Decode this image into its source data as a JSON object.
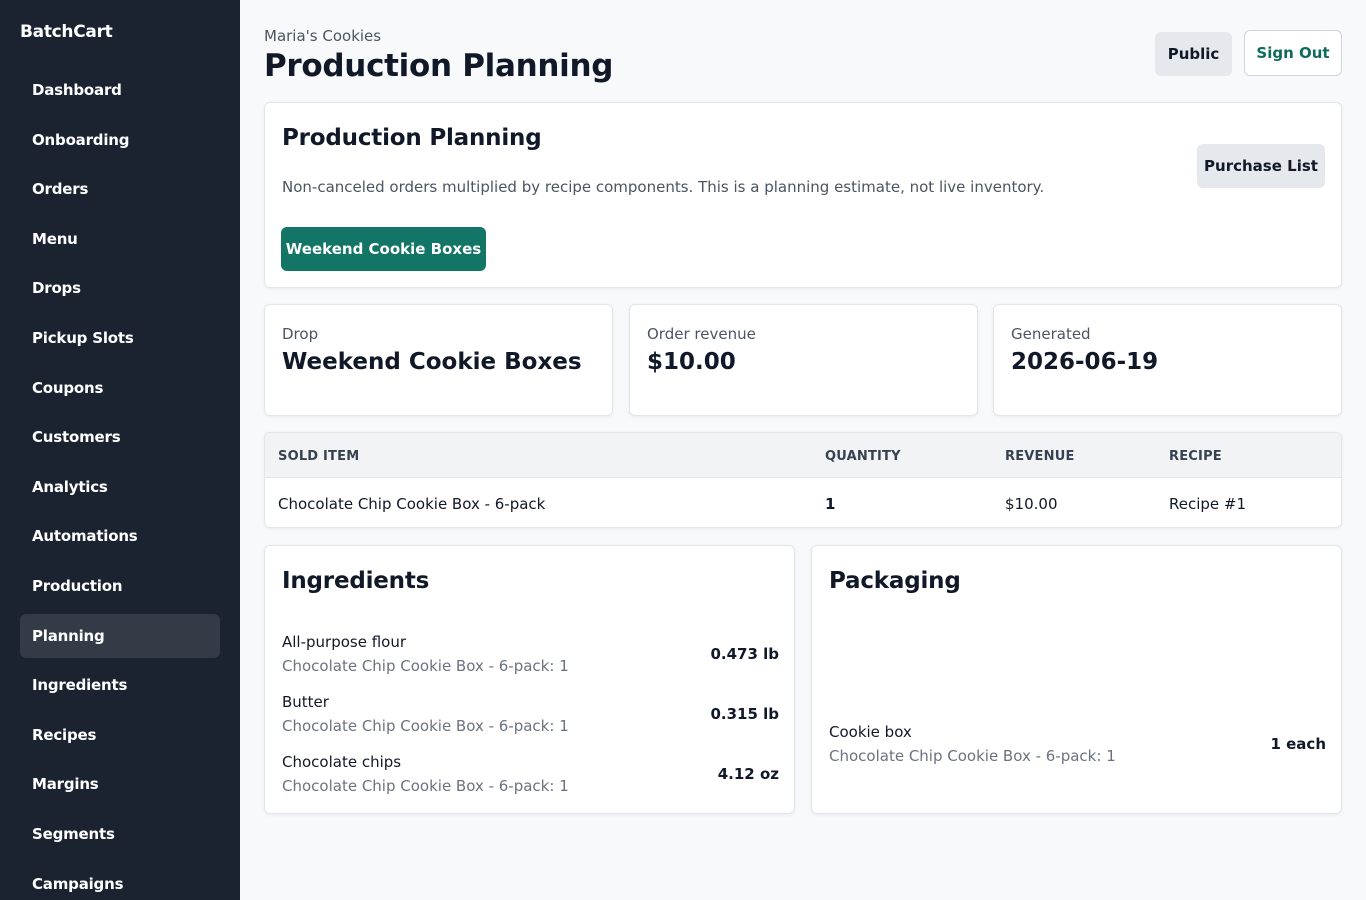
{
  "app": {
    "brand": "BatchCart"
  },
  "sidebar": {
    "items": [
      {
        "label": "Dashboard"
      },
      {
        "label": "Onboarding"
      },
      {
        "label": "Orders"
      },
      {
        "label": "Menu"
      },
      {
        "label": "Drops"
      },
      {
        "label": "Pickup Slots"
      },
      {
        "label": "Coupons"
      },
      {
        "label": "Customers"
      },
      {
        "label": "Analytics"
      },
      {
        "label": "Automations"
      },
      {
        "label": "Production"
      },
      {
        "label": "Planning"
      },
      {
        "label": "Ingredients"
      },
      {
        "label": "Recipes"
      },
      {
        "label": "Margins"
      },
      {
        "label": "Segments"
      },
      {
        "label": "Campaigns"
      }
    ],
    "active": "Planning"
  },
  "header": {
    "store_name": "Maria's Cookies",
    "title": "Production Planning",
    "public_label": "Public",
    "signout_label": "Sign Out"
  },
  "planning": {
    "title": "Production Planning",
    "description": "Non-canceled orders multiplied by recipe components. This is a planning estimate, not live inventory.",
    "purchase_list_label": "Purchase List",
    "drop_button_label": "Weekend Cookie Boxes"
  },
  "stats": [
    {
      "label": "Drop",
      "value": "Weekend Cookie Boxes"
    },
    {
      "label": "Order revenue",
      "value": "$10.00"
    },
    {
      "label": "Generated",
      "value": "2026-06-19"
    }
  ],
  "sold_table": {
    "headers": [
      "SOLD ITEM",
      "QUANTITY",
      "REVENUE",
      "RECIPE"
    ],
    "rows": [
      {
        "item": "Chocolate Chip Cookie Box - 6-pack",
        "quantity": "1",
        "revenue": "$10.00",
        "recipe": "Recipe #1"
      }
    ]
  },
  "ingredients": {
    "title": "Ingredients",
    "items": [
      {
        "name": "All-purpose flour",
        "source": "Chocolate Chip Cookie Box - 6-pack: 1",
        "qty": "0.473 lb"
      },
      {
        "name": "Butter",
        "source": "Chocolate Chip Cookie Box - 6-pack: 1",
        "qty": "0.315 lb"
      },
      {
        "name": "Chocolate chips",
        "source": "Chocolate Chip Cookie Box - 6-pack: 1",
        "qty": "4.12 oz"
      }
    ]
  },
  "packaging": {
    "title": "Packaging",
    "items": [
      {
        "name": "Cookie box",
        "source": "Chocolate Chip Cookie Box - 6-pack: 1",
        "qty": "1 each"
      }
    ]
  },
  "colors": {
    "sidebar_bg": "#1b2230",
    "accent": "#137566",
    "active_nav": "#343b47"
  }
}
